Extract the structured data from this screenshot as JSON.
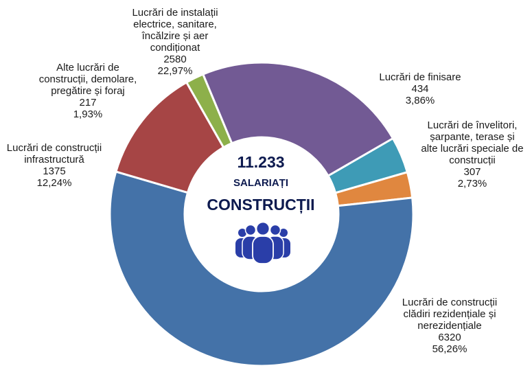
{
  "chart_data": {
    "type": "pie",
    "donut": true,
    "slices": [
      {
        "label_lines": [
          "Lucrări de finisare"
        ],
        "value": 434,
        "percent": "3,86%",
        "color": "#3e9bb6"
      },
      {
        "label_lines": [
          "Lucrări de învelitori,",
          "șarpante, terase și",
          "alte lucrări speciale de",
          "construcții"
        ],
        "value": 307,
        "percent": "2,73%",
        "color": "#e0873f"
      },
      {
        "label_lines": [
          "Lucrări de construcții",
          "clădiri rezidențiale și",
          "nerezidențiale"
        ],
        "value": 6320,
        "percent": "56,26%",
        "color": "#4472a8"
      },
      {
        "label_lines": [
          "Lucrări de construcții",
          "infrastructură"
        ],
        "value": 1375,
        "percent": "12,24%",
        "color": "#a64545"
      },
      {
        "label_lines": [
          "Alte lucrări de",
          "construcții, demolare,",
          "pregătire și foraj"
        ],
        "value": 217,
        "percent": "1,93%",
        "color": "#8db04a"
      },
      {
        "label_lines": [
          "Lucrări de instalații",
          "electrice, sanitare,",
          "încălzire și aer",
          "condiționat"
        ],
        "value": 2580,
        "percent": "22,97%",
        "color": "#725a94"
      }
    ]
  },
  "center": {
    "total": "11.233",
    "line1": "SALARIAȚI",
    "line2": "CONSTRUCȚII",
    "icon": "people-group-icon",
    "color": "#0d1a4f",
    "icon_color": "#2a3ea8"
  }
}
